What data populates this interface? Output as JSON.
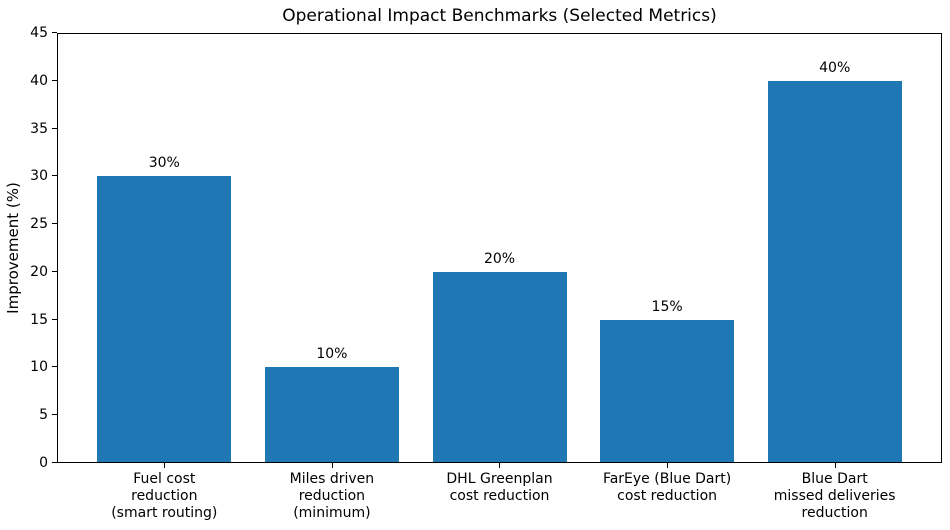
{
  "chart_data": {
    "type": "bar",
    "title": "Operational Impact Benchmarks (Selected Metrics)",
    "xlabel": "",
    "ylabel": "Improvement (%)",
    "categories": [
      "Fuel cost\nreduction\n(smart routing)",
      "Miles driven\nreduction\n(minimum)",
      "DHL Greenplan\ncost reduction",
      "FarEye (Blue Dart)\ncost reduction",
      "Blue Dart\nmissed deliveries\nreduction"
    ],
    "values": [
      30,
      10,
      20,
      15,
      40
    ],
    "bar_labels": [
      "30%",
      "10%",
      "20%",
      "15%",
      "40%"
    ],
    "ylim": [
      0,
      45
    ],
    "y_ticks": [
      0,
      5,
      10,
      15,
      20,
      25,
      30,
      35,
      40,
      45
    ],
    "bar_color": "#1f77b4",
    "grid": false,
    "legend": null
  }
}
